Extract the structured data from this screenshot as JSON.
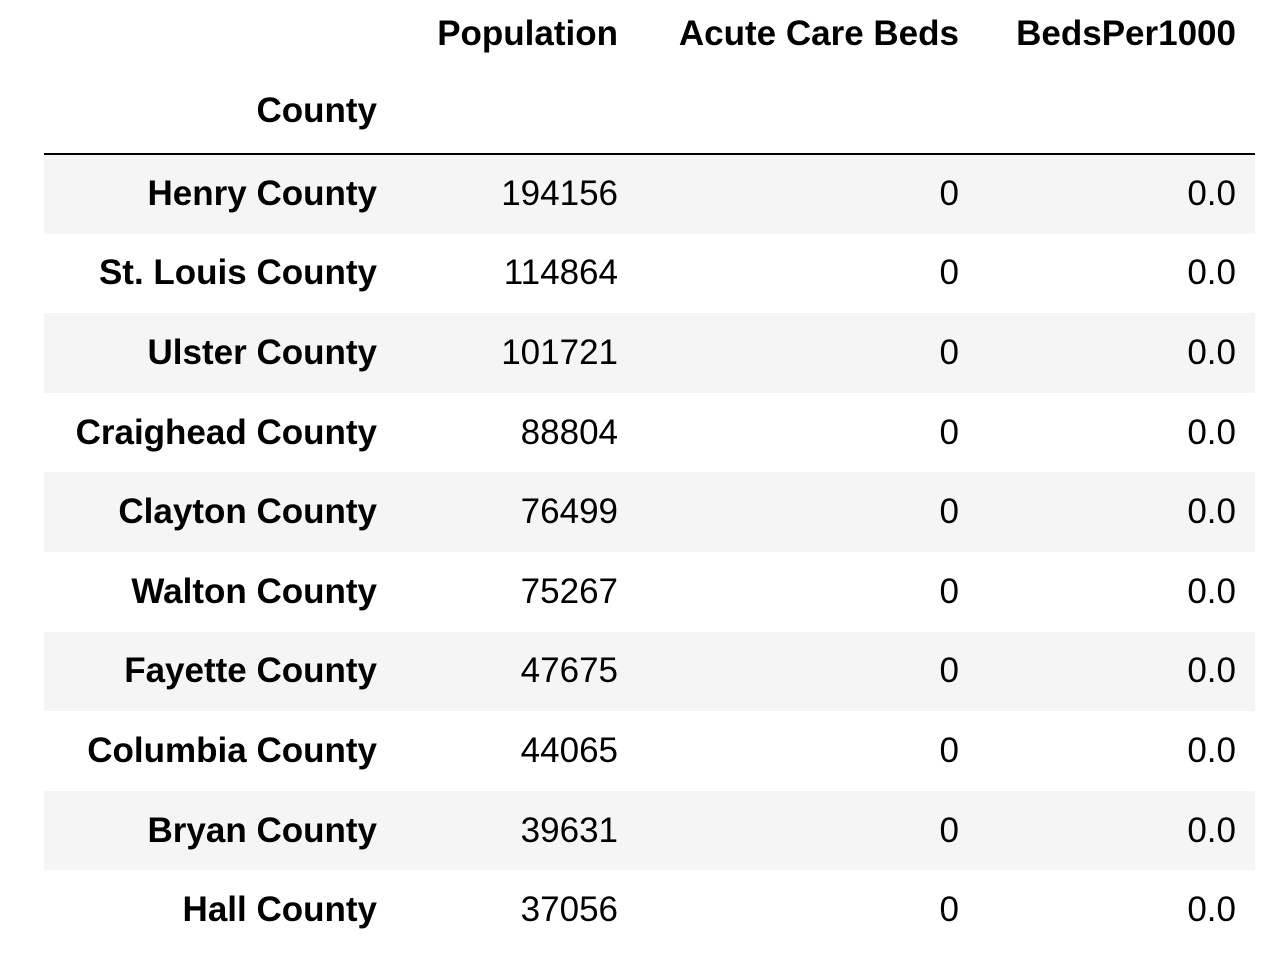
{
  "table": {
    "columns": [
      "Population",
      "Acute Care Beds",
      "BedsPer1000"
    ],
    "index_name": "County",
    "rows": [
      {
        "county": "Henry County",
        "population": "194156",
        "beds": "0",
        "per1000": "0.0"
      },
      {
        "county": "St. Louis County",
        "population": "114864",
        "beds": "0",
        "per1000": "0.0"
      },
      {
        "county": "Ulster County",
        "population": "101721",
        "beds": "0",
        "per1000": "0.0"
      },
      {
        "county": "Craighead County",
        "population": "88804",
        "beds": "0",
        "per1000": "0.0"
      },
      {
        "county": "Clayton County",
        "population": "76499",
        "beds": "0",
        "per1000": "0.0"
      },
      {
        "county": "Walton County",
        "population": "75267",
        "beds": "0",
        "per1000": "0.0"
      },
      {
        "county": "Fayette County",
        "population": "47675",
        "beds": "0",
        "per1000": "0.0"
      },
      {
        "county": "Columbia County",
        "population": "44065",
        "beds": "0",
        "per1000": "0.0"
      },
      {
        "county": "Bryan County",
        "population": "39631",
        "beds": "0",
        "per1000": "0.0"
      },
      {
        "county": "Hall County",
        "population": "37056",
        "beds": "0",
        "per1000": "0.0"
      }
    ]
  }
}
